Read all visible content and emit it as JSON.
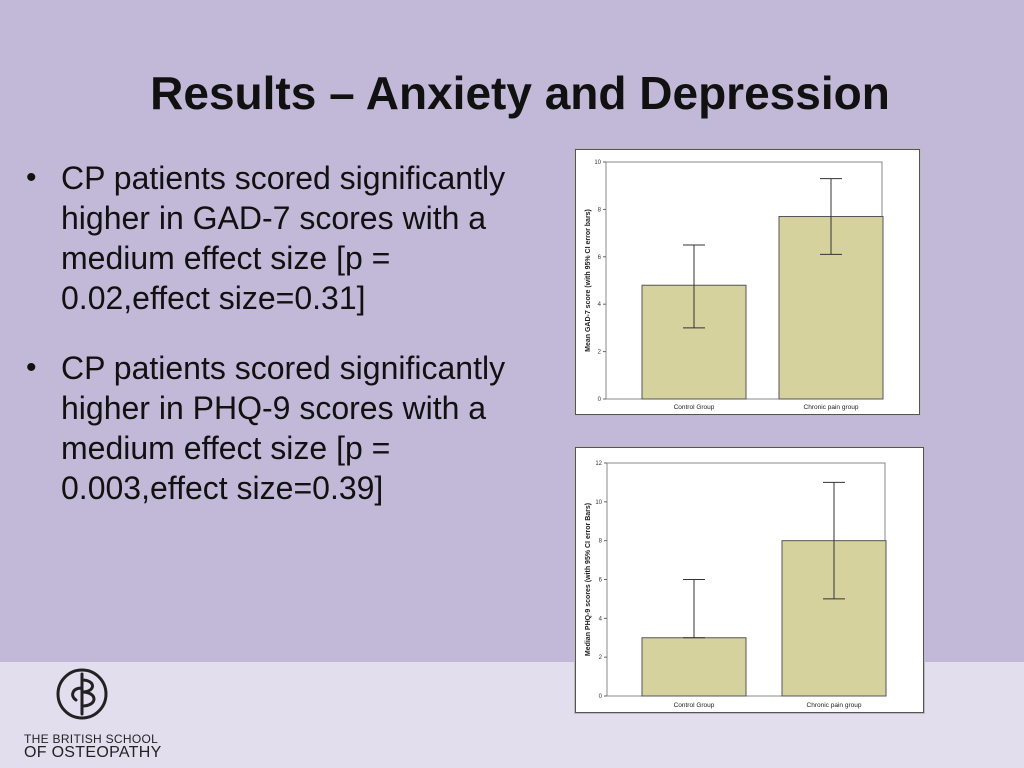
{
  "slide": {
    "title": "Results – Anxiety and Depression",
    "bullet_symbol": "•",
    "bullets": [
      "CP patients scored significantly higher in GAD-7 scores with a medium effect size [p = 0.02,effect size=0.31]",
      "CP patients scored significantly higher in PHQ-9 scores with a medium effect size [p = 0.003,effect size=0.39]"
    ]
  },
  "logo": {
    "line1": "THE BRITISH SCHOOL",
    "line2": "OF OSTEOPATHY"
  },
  "colors": {
    "background": "#c1b9d7",
    "footer": "#e2deed",
    "bar_fill": "#d5d29e",
    "bar_stroke": "#555555"
  },
  "chart_data": [
    {
      "type": "bar",
      "title": "",
      "categories": [
        "Control Group",
        "Chronic pain group"
      ],
      "values": [
        4.8,
        7.7
      ],
      "error_low": [
        3.0,
        6.1
      ],
      "error_high": [
        6.5,
        9.3
      ],
      "xlabel": "",
      "ylabel": "Mean GAD-7 score (with 95% CI error bars)",
      "ylim": [
        0,
        10
      ],
      "yticks": [
        0,
        2,
        4,
        6,
        8,
        10
      ]
    },
    {
      "type": "bar",
      "title": "",
      "categories": [
        "Control Group",
        "Chronic pain group"
      ],
      "values": [
        3,
        8
      ],
      "error_low": [
        3,
        5
      ],
      "error_high": [
        6,
        11
      ],
      "xlabel": "",
      "ylabel": "Median PHQ-9 scores (with 95% CI error Bars)",
      "ylim": [
        0,
        12
      ],
      "yticks": [
        0,
        2,
        4,
        6,
        8,
        10,
        12
      ]
    }
  ]
}
